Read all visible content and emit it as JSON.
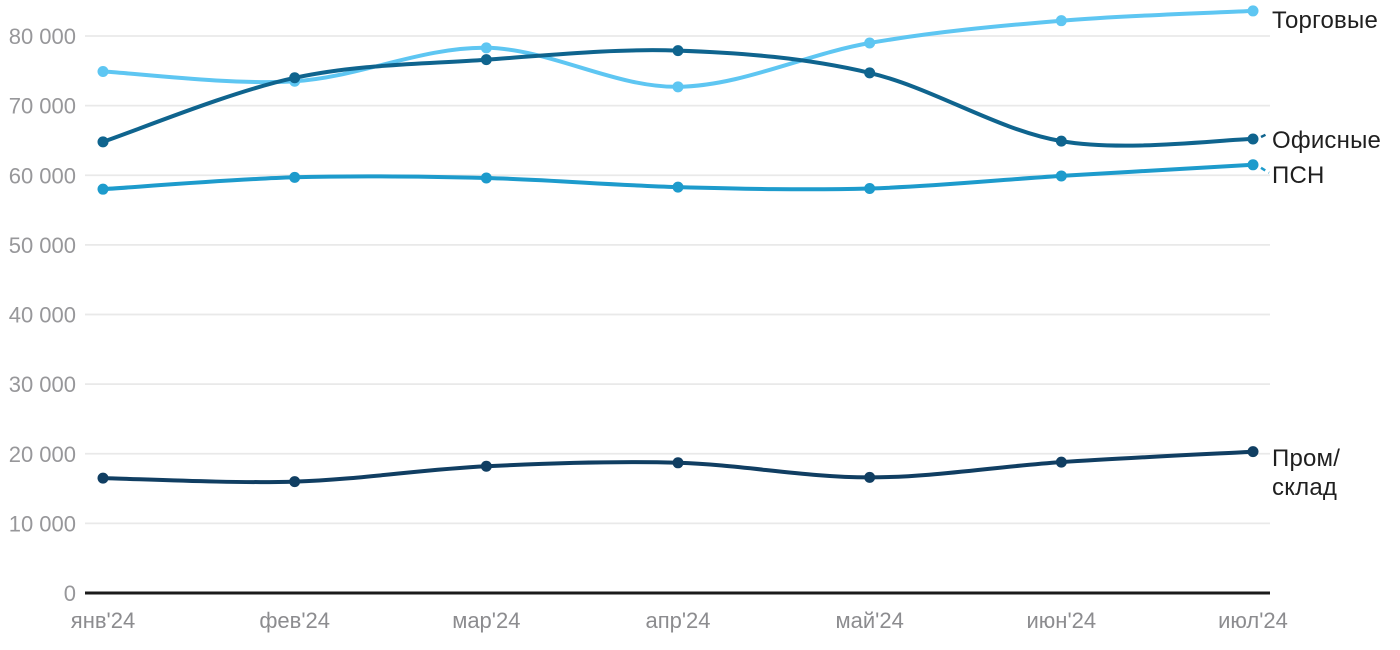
{
  "chart_data": {
    "type": "line",
    "title": "",
    "xlabel": "",
    "ylabel": "",
    "grid": "horizontal",
    "legend_position": "right-of-line-ends",
    "categories": [
      "янв'24",
      "фев'24",
      "мар'24",
      "апр'24",
      "май'24",
      "июн'24",
      "июл'24"
    ],
    "y_axis": {
      "range": [
        0,
        85000
      ],
      "ticks": [
        {
          "value": 0,
          "label": "0"
        },
        {
          "value": 10000,
          "label": "10 000"
        },
        {
          "value": 20000,
          "label": "20 000"
        },
        {
          "value": 30000,
          "label": "30 000"
        },
        {
          "value": 40000,
          "label": "40 000"
        },
        {
          "value": 50000,
          "label": "50 000"
        },
        {
          "value": 60000,
          "label": "60 000"
        },
        {
          "value": 70000,
          "label": "70 000"
        },
        {
          "value": 80000,
          "label": "80 000"
        }
      ]
    },
    "series": [
      {
        "name": "Торговые",
        "label": "Торговые",
        "color": "#5EC6F2",
        "values": [
          74900,
          73500,
          78300,
          72700,
          79000,
          82200,
          83600
        ],
        "end_connector": "none"
      },
      {
        "name": "Офисные",
        "label": "Офисные",
        "color": "#0F648E",
        "values": [
          64800,
          74000,
          76600,
          77900,
          74700,
          64900,
          65200
        ],
        "end_connector": "up"
      },
      {
        "name": "ПСН",
        "label": "ПСН",
        "color": "#1D9BCC",
        "values": [
          58000,
          59700,
          59600,
          58300,
          58100,
          59900,
          61500
        ],
        "end_connector": "down"
      },
      {
        "name": "Пром/склад",
        "label": "Пром/\nсклад",
        "color": "#103E62",
        "values": [
          16500,
          16000,
          18200,
          18700,
          16600,
          18800,
          20300
        ],
        "end_connector": "none"
      }
    ]
  },
  "colors": {
    "background": "#FFFFFF",
    "grid": "#E9E9E9",
    "axis": "#1B1B1B",
    "y_tick_label": "#97979A",
    "x_tick_label": "#8C8C8F",
    "series_label": "#1F1F1F"
  }
}
